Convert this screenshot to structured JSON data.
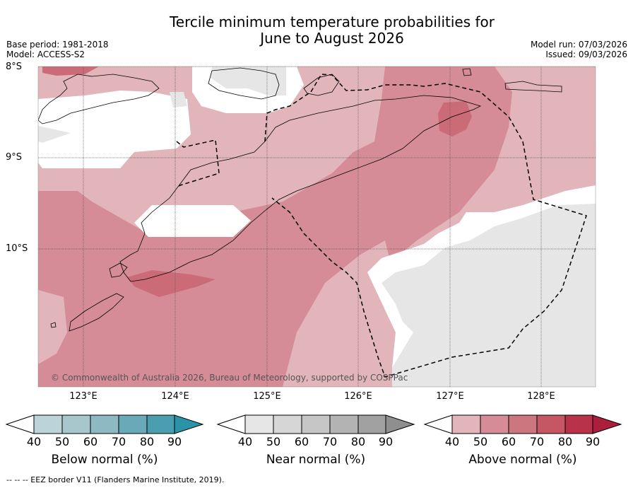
{
  "title": {
    "line1": "Tercile minimum temperature probabilities for",
    "line2": "June to August 2026"
  },
  "meta_left": {
    "base_period": "Base period: 1981-2018",
    "model": "Model: ACCESS-S2"
  },
  "meta_right": {
    "model_run": "Model run: 07/03/2026",
    "issued": "Issued: 09/03/2026"
  },
  "latitude_labels": [
    "8°S",
    "9°S",
    "10°S"
  ],
  "longitude_labels": [
    "123°E",
    "124°E",
    "125°E",
    "126°E",
    "127°E",
    "128°E"
  ],
  "copyright": "© Commonwealth of Australia 2026, Bureau of Meteorology, supported by COSPPac",
  "colorbars": [
    {
      "label": "Below normal (%)",
      "ticks": [
        "40",
        "50",
        "60",
        "70",
        "80",
        "90"
      ],
      "colors": [
        "#bcd3d9",
        "#a7c7cc",
        "#8db9c3",
        "#6aa9b8",
        "#4a9eb0",
        "#2a93a8"
      ],
      "accent": "#1e8ca3"
    },
    {
      "label": "Near normal (%)",
      "ticks": [
        "40",
        "50",
        "60",
        "70",
        "80",
        "90"
      ],
      "colors": [
        "#e6e6e6",
        "#d6d6d6",
        "#c6c6c6",
        "#b3b3b3",
        "#a1a1a1",
        "#8f8f8f"
      ],
      "accent": "#828282"
    },
    {
      "label": "Above normal (%)",
      "ticks": [
        "40",
        "50",
        "60",
        "70",
        "80",
        "90"
      ],
      "colors": [
        "#e2b5bb",
        "#d58c96",
        "#cc767f",
        "#c45763",
        "#b8334a",
        "#ad1e3c"
      ],
      "accent": "#a51a38"
    }
  ],
  "footnote": "--  --  -- EEZ border V11 (Flanders Marine Institute, 2019).",
  "map_colors": {
    "above40": "#e2b5bb",
    "above50": "#d58c96",
    "above60": "#cc6b78",
    "near40": "#e6e6e6",
    "white": "#ffffff"
  }
}
